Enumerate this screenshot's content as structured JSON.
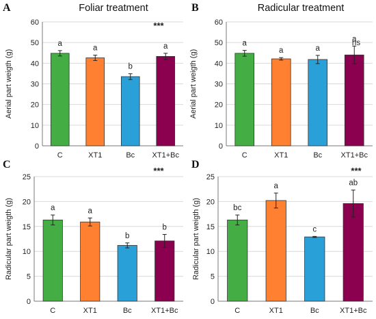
{
  "chart_data": [
    {
      "type": "bar",
      "panel": "A",
      "title": "Foliar treatment",
      "ylabel": "Aerial part weigth (g)",
      "ylim": [
        0,
        60
      ],
      "yticks": [
        0,
        10,
        20,
        30,
        40,
        50,
        60
      ],
      "categories": [
        "C",
        "XT1",
        "Bc",
        "XT1+Bc"
      ],
      "values": [
        44.8,
        42.6,
        33.5,
        43.3
      ],
      "errors": [
        1.3,
        1.3,
        1.4,
        1.5
      ],
      "letters": [
        "a",
        "a",
        "b",
        "a"
      ],
      "significance": "***",
      "colors": [
        "#44ad44",
        "#ff8030",
        "#2aa0d8",
        "#8b004f"
      ],
      "grid": true
    },
    {
      "type": "bar",
      "panel": "B",
      "title": "Radicular treatment",
      "ylabel": "Aerial part weigth (g)",
      "ylim": [
        0,
        60
      ],
      "yticks": [
        0,
        10,
        20,
        30,
        40,
        50,
        60
      ],
      "categories": [
        "C",
        "XT1",
        "Bc",
        "XT1+Bc"
      ],
      "values": [
        44.8,
        42.1,
        41.8,
        44.0
      ],
      "errors": [
        1.4,
        0.6,
        2.0,
        4.3
      ],
      "letters": [
        "a",
        "a",
        "a",
        "a"
      ],
      "significance": "ns",
      "colors": [
        "#44ad44",
        "#ff8030",
        "#2aa0d8",
        "#8b004f"
      ],
      "grid": true
    },
    {
      "type": "bar",
      "panel": "C",
      "title": "",
      "ylabel": "Radicular part weigth (g)",
      "ylim": [
        0,
        25
      ],
      "yticks": [
        0,
        5,
        10,
        15,
        20,
        25
      ],
      "categories": [
        "C",
        "XT1",
        "Bc",
        "XT1+Bc"
      ],
      "values": [
        16.3,
        15.9,
        11.2,
        12.1
      ],
      "errors": [
        1.0,
        0.8,
        0.5,
        1.3
      ],
      "letters": [
        "a",
        "a",
        "b",
        "b"
      ],
      "significance": "***",
      "colors": [
        "#44ad44",
        "#ff8030",
        "#2aa0d8",
        "#8b004f"
      ],
      "grid": true
    },
    {
      "type": "bar",
      "panel": "D",
      "title": "",
      "ylabel": "Radicular part weigth (g)",
      "ylim": [
        0,
        25
      ],
      "yticks": [
        0,
        5,
        10,
        15,
        20,
        25
      ],
      "categories": [
        "C",
        "XT1",
        "Bc",
        "XT1+Bc"
      ],
      "values": [
        16.3,
        20.2,
        12.9,
        19.6
      ],
      "errors": [
        1.0,
        1.5,
        0.1,
        2.7
      ],
      "letters": [
        "bc",
        "a",
        "c",
        "ab"
      ],
      "significance": "***",
      "colors": [
        "#44ad44",
        "#ff8030",
        "#2aa0d8",
        "#8b004f"
      ],
      "grid": true
    }
  ]
}
